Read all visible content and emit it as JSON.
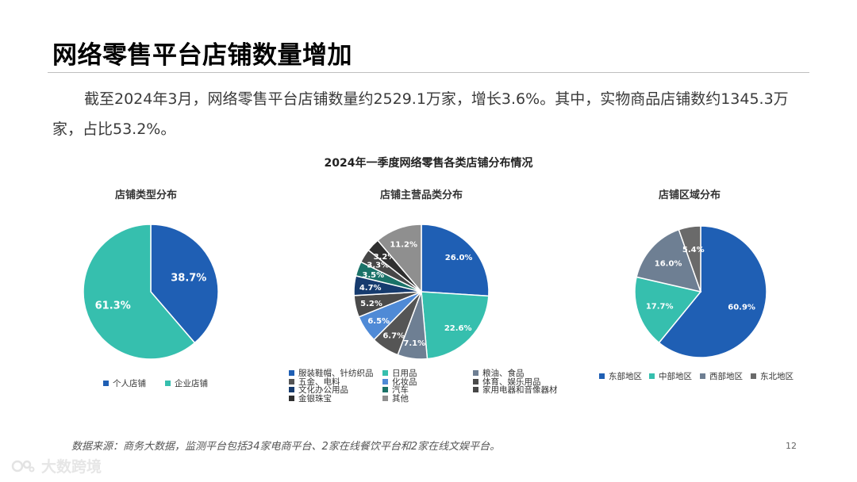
{
  "header": {
    "title": "网络零售平台店铺数量增加",
    "summary": "截至2024年3月，网络零售平台店铺数量约2529.1万家，增长3.6%。其中，实物商品店铺数约1345.3万家，占比53.2%。"
  },
  "chart_title": "2024年一季度网络零售各类店铺分布情况",
  "chart_data": [
    {
      "type": "pie",
      "title": "店铺类型分布",
      "categories": [
        "个人店铺",
        "企业店铺"
      ],
      "values": [
        38.7,
        61.3
      ],
      "labels": [
        "38.7%",
        "61.3%"
      ],
      "colors": [
        "#1f5fb4",
        "#36bfae"
      ],
      "legend": "bottom"
    },
    {
      "type": "pie",
      "title": "店铺主营品类分布",
      "categories": [
        "服装鞋帽、针纺织品",
        "日用品",
        "粮油、食品",
        "五金、电料",
        "化妆品",
        "体育、娱乐用品",
        "文化办公用品",
        "汽车",
        "家用电器和音像器材",
        "金银珠宝",
        "其他"
      ],
      "values": [
        26.0,
        22.6,
        7.1,
        6.7,
        6.5,
        5.2,
        4.7,
        3.5,
        3.3,
        3.2,
        11.2
      ],
      "labels": [
        "26.0%",
        "22.6%",
        "7.1%",
        "6.7%",
        "6.5%",
        "5.2%",
        "4.7%",
        "3.5%",
        "3.3%",
        "3.2%",
        "11.2%"
      ],
      "colors": [
        "#1f5fb4",
        "#36bfae",
        "#6e7f93",
        "#555555",
        "#4f8ad6",
        "#4a4a4a",
        "#163b6e",
        "#1a7268",
        "#474747",
        "#2f2f2f",
        "#8f8f8f"
      ],
      "legend": "bottom"
    },
    {
      "type": "pie",
      "title": "店铺区域分布",
      "categories": [
        "东部地区",
        "中部地区",
        "西部地区",
        "东北地区"
      ],
      "values": [
        60.9,
        17.7,
        16.0,
        5.4
      ],
      "labels": [
        "60.9%",
        "17.7%",
        "16.0%",
        "5.4%"
      ],
      "colors": [
        "#1f5fb4",
        "#36bfae",
        "#6e7f93",
        "#6a6a6a"
      ],
      "legend": "bottom"
    }
  ],
  "footer": {
    "source": "数据来源：商务大数据，监测平台包括34家电商平台、2家在线餐饮平台和2家在线文娱平台。",
    "page_number": "12",
    "watermark": "大数跨境"
  }
}
